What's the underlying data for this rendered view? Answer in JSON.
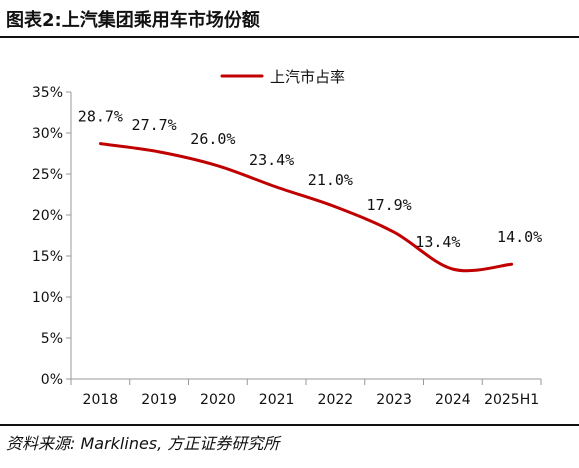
{
  "header": {
    "title": "图表2:上汽集团乘用车市场份额"
  },
  "footer": {
    "source": "资料来源: Marklines, 方正证券研究所"
  },
  "colors": {
    "series_line": "#C00000",
    "axis": "#999999",
    "text": "#111111"
  },
  "chart_data": {
    "type": "line",
    "title": "",
    "xlabel": "",
    "ylabel": "",
    "categories": [
      "2018",
      "2019",
      "2020",
      "2021",
      "2022",
      "2023",
      "2024",
      "2025H1"
    ],
    "y_ticks": [
      "0%",
      "5%",
      "10%",
      "15%",
      "20%",
      "25%",
      "30%",
      "35%"
    ],
    "ylim": [
      0,
      35
    ],
    "grid": false,
    "legend_position": "top-center",
    "smooth": true,
    "series": [
      {
        "name": "上汽市占率",
        "values": [
          28.7,
          27.7,
          26.0,
          23.4,
          21.0,
          17.9,
          13.4,
          14.0
        ],
        "labels": [
          "28.7%",
          "27.7%",
          "26.0%",
          "23.4%",
          "21.0%",
          "17.9%",
          "13.4%",
          "14.0%"
        ]
      }
    ]
  }
}
